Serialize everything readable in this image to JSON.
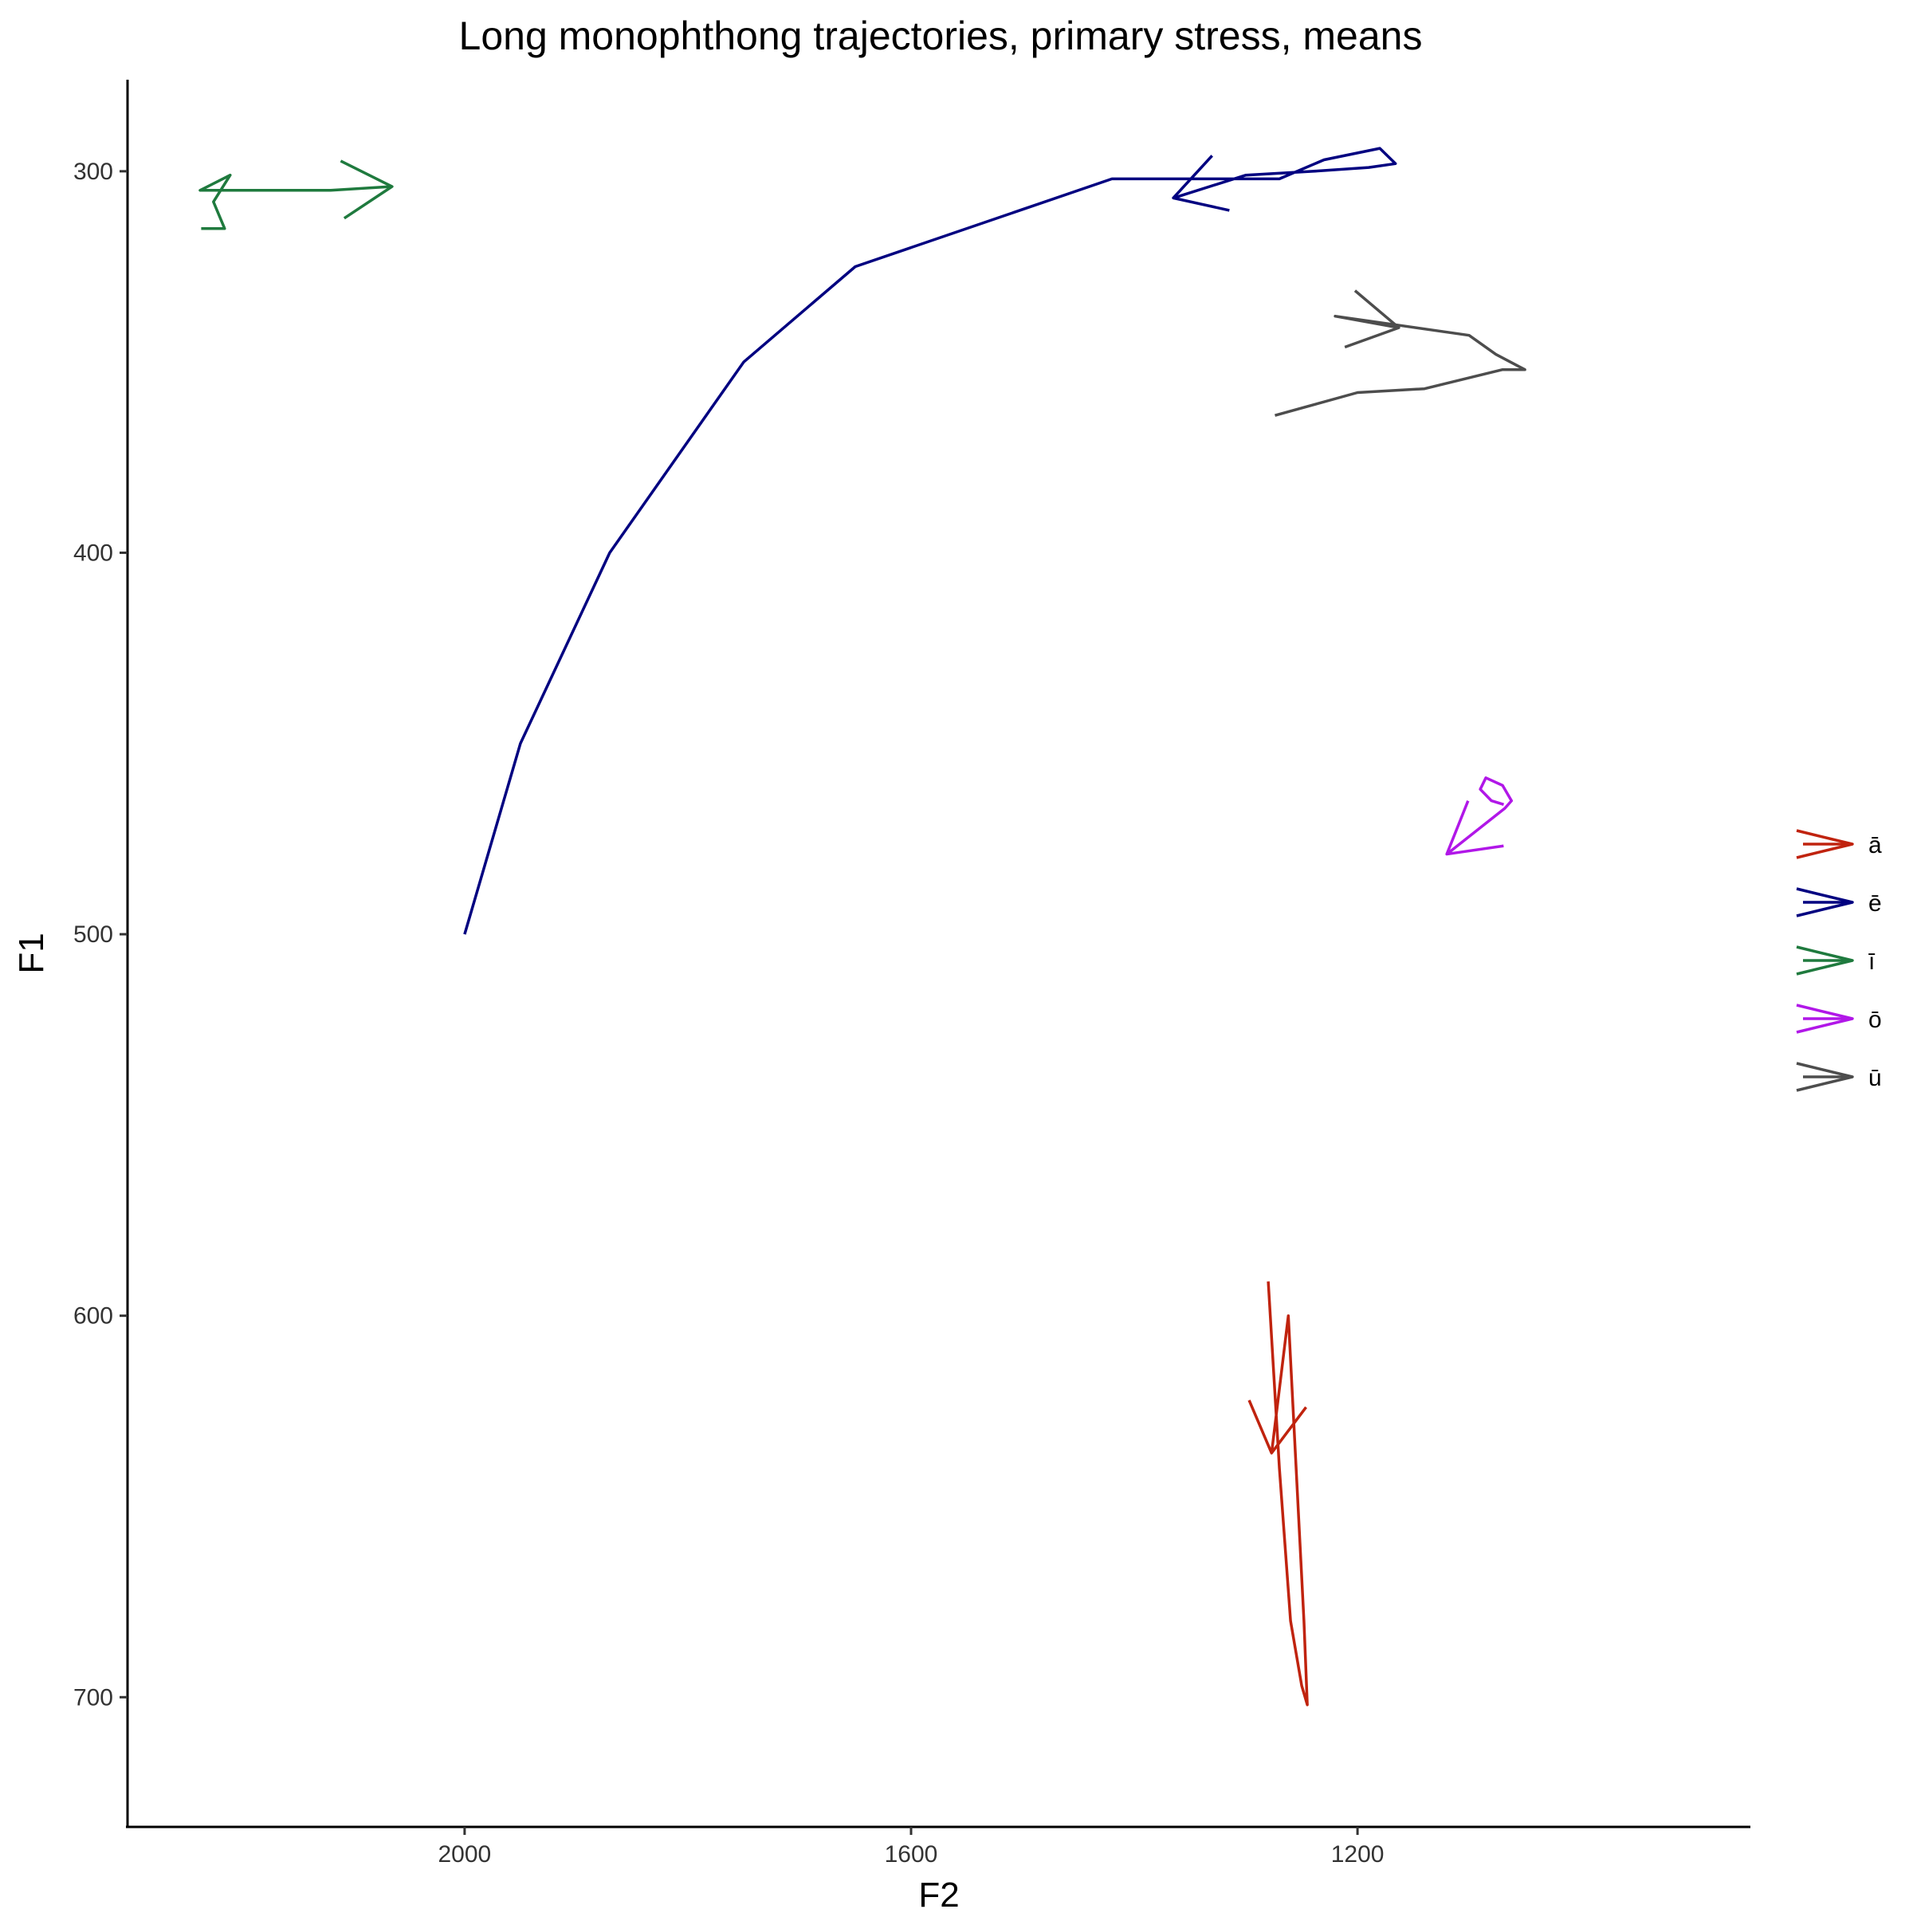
{
  "chart_data": {
    "type": "line",
    "title": "Long monophthong trajectories, primary stress, means",
    "xlabel": "F2",
    "ylabel": "F1",
    "x_reversed": true,
    "y_reversed": true,
    "xlim": [
      2302,
      848
    ],
    "ylim": [
      276,
      734
    ],
    "x_ticks": [
      2000,
      1600,
      1200
    ],
    "y_ticks": [
      300,
      400,
      500,
      600,
      700
    ],
    "grid": false,
    "legend_position": "right",
    "series": [
      {
        "name": "ā",
        "color": "#C0230E",
        "points": [
          [
            1280,
            591
          ],
          [
            1270,
            640
          ],
          [
            1260,
            680
          ],
          [
            1250,
            697
          ],
          [
            1245,
            702
          ],
          [
            1248,
            680
          ],
          [
            1262,
            600
          ],
          [
            1277,
            636
          ]
        ]
      },
      {
        "name": "ē",
        "color": "#000080",
        "points": [
          [
            2000,
            500
          ],
          [
            1950,
            450
          ],
          [
            1870,
            400
          ],
          [
            1750,
            350
          ],
          [
            1650,
            325
          ],
          [
            1500,
            310
          ],
          [
            1420,
            302
          ],
          [
            1300,
            302
          ],
          [
            1270,
            302
          ],
          [
            1230,
            297
          ],
          [
            1180,
            294
          ],
          [
            1166,
            298
          ],
          [
            1190,
            299
          ],
          [
            1240,
            300
          ],
          [
            1300,
            301
          ],
          [
            1365,
            307
          ]
        ]
      },
      {
        "name": "ī",
        "color": "#1F7A3E",
        "points": [
          [
            2236,
            315
          ],
          [
            2215,
            315
          ],
          [
            2225,
            308
          ],
          [
            2210,
            301
          ],
          [
            2237,
            305
          ],
          [
            2120,
            305
          ],
          [
            2065,
            304
          ]
        ]
      },
      {
        "name": "ō",
        "color": "#B117E8",
        "points": [
          [
            1069,
            466
          ],
          [
            1080,
            465
          ],
          [
            1090,
            462
          ],
          [
            1085,
            459
          ],
          [
            1070,
            461
          ],
          [
            1062,
            465
          ],
          [
            1068,
            467
          ],
          [
            1120,
            479
          ]
        ]
      },
      {
        "name": "ū",
        "color": "#4D4D4D",
        "points": [
          [
            1274,
            364
          ],
          [
            1200,
            358
          ],
          [
            1140,
            357
          ],
          [
            1070,
            352
          ],
          [
            1050,
            352
          ],
          [
            1076,
            348
          ],
          [
            1100,
            343
          ],
          [
            1220,
            338
          ],
          [
            1163,
            341
          ]
        ]
      }
    ]
  }
}
